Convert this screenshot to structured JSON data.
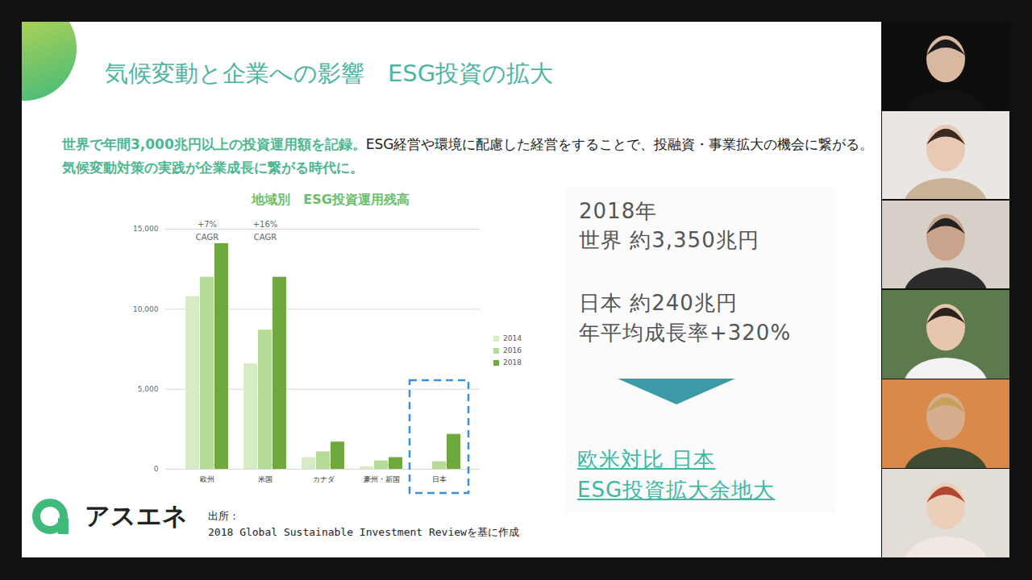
{
  "slide": {
    "title": "気候変動と企業への影響　ESG投資の拡大",
    "lead": [
      {
        "text": "世界で年間3,000兆円以上の投資運用額を記録。",
        "emphasis": true
      },
      {
        "text": "ESG経営や環境に配慮した経営をすることで、投融資・事業拡大の機会に繋がる。",
        "emphasis": false
      },
      {
        "text": "気候変動対策の実践が企業成長に繋がる時代に。",
        "emphasis": true
      }
    ],
    "panel": {
      "lines": [
        "2018年",
        "世界 約3,350兆円",
        "日本 約240兆円",
        "年平均成長率+320%"
      ],
      "conclusion": [
        "欧米対比 日本",
        "ESG投資拡大余地大"
      ]
    },
    "logo": "アスエネ",
    "source": [
      "出所：",
      "2018 Global Sustainable Investment Reviewを基に作成"
    ]
  },
  "chart_data": {
    "type": "bar",
    "title": "地域別　ESG投資運用残高",
    "categories": [
      "欧州",
      "米国",
      "カナダ",
      "豪州・新国",
      "日本"
    ],
    "series": [
      {
        "name": "2014",
        "color": "#d6ecc6",
        "values": [
          10800,
          6600,
          730,
          150,
          10
        ]
      },
      {
        "name": "2016",
        "color": "#b4dc97",
        "values": [
          12000,
          8700,
          1090,
          520,
          470
        ]
      },
      {
        "name": "2018",
        "color": "#6ea83e",
        "values": [
          14100,
          12000,
          1700,
          730,
          2180
        ]
      }
    ],
    "ylim": [
      0,
      15000
    ],
    "yticks": [
      0,
      {
        "value": 5000,
        "label": "5,000"
      },
      {
        "value": 10000,
        "label": "10,000"
      },
      {
        "value": 15000,
        "label": "15,000"
      }
    ],
    "grid": true,
    "legend": "right",
    "annotations": [
      {
        "category": "欧州",
        "text": [
          "+7%",
          "CAGR"
        ]
      },
      {
        "category": "米国",
        "text": [
          "+16%",
          "CAGR"
        ]
      }
    ]
  }
}
